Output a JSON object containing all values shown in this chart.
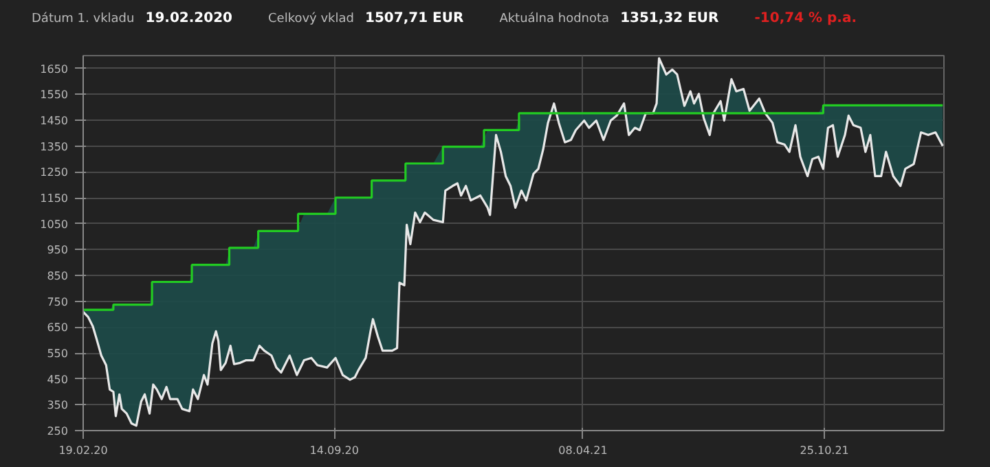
{
  "chart_data": {
    "type": "line",
    "annotations": [
      "Dátum 1. vkladu",
      "19.02.2020",
      "Celkový vklad",
      "1507,71 EUR",
      "Aktuálna hodnota",
      "1351,32 EUR",
      "-10,74 % p.a."
    ],
    "xlim": [
      "2020-02-19",
      "2022-02-01"
    ],
    "xticks": [
      {
        "value": "2020-02-19",
        "label": "19.02.20"
      },
      {
        "value": "2020-09-14",
        "label": "14.09.20"
      },
      {
        "value": "2021-04-08",
        "label": "08.04.21"
      },
      {
        "value": "2021-10-25",
        "label": "25.10.21"
      }
    ],
    "ylim": [
      250,
      1700
    ],
    "yticks": [
      250,
      350,
      450,
      550,
      650,
      750,
      850,
      950,
      1050,
      1150,
      1250,
      1350,
      1450,
      1550,
      1650
    ],
    "grid": true,
    "series": [
      {
        "color": "#e8e8e8",
        "x": [
          "2020-02-19",
          "2020-02-23",
          "2020-02-27",
          "2020-03-01",
          "2020-03-05",
          "2020-03-09",
          "2020-03-12",
          "2020-03-15",
          "2020-03-17",
          "2020-03-20",
          "2020-03-22",
          "2020-03-26",
          "2020-03-30",
          "2020-04-03",
          "2020-04-07",
          "2020-04-10",
          "2020-04-14",
          "2020-04-17",
          "2020-04-20",
          "2020-04-24",
          "2020-04-28",
          "2020-05-01",
          "2020-05-07",
          "2020-05-11",
          "2020-05-17",
          "2020-05-20",
          "2020-05-24",
          "2020-05-29",
          "2020-06-01",
          "2020-06-05",
          "2020-06-08",
          "2020-06-10",
          "2020-06-12",
          "2020-06-16",
          "2020-06-20",
          "2020-06-23",
          "2020-06-28",
          "2020-07-03",
          "2020-07-09",
          "2020-07-14",
          "2020-07-18",
          "2020-07-24",
          "2020-07-28",
          "2020-08-01",
          "2020-08-08",
          "2020-08-14",
          "2020-08-20",
          "2020-08-26",
          "2020-08-31",
          "2020-09-08",
          "2020-09-15",
          "2020-09-21",
          "2020-09-27",
          "2020-10-01",
          "2020-10-04",
          "2020-10-10",
          "2020-10-14",
          "2020-10-16",
          "2020-10-20",
          "2020-10-24",
          "2020-11-01",
          "2020-11-05",
          "2020-11-07",
          "2020-11-11",
          "2020-11-13",
          "2020-11-16",
          "2020-11-20",
          "2020-11-24",
          "2020-11-28",
          "2020-12-05",
          "2020-12-13",
          "2020-12-15",
          "2020-12-21",
          "2020-12-25",
          "2020-12-28",
          "2021-01-01",
          "2021-01-05",
          "2021-01-13",
          "2021-01-19",
          "2021-01-21",
          "2021-01-26",
          "2021-01-30",
          "2021-02-03",
          "2021-02-07",
          "2021-02-11",
          "2021-02-16",
          "2021-02-20",
          "2021-02-26",
          "2021-03-02",
          "2021-03-06",
          "2021-03-10",
          "2021-03-15",
          "2021-03-19",
          "2021-03-24",
          "2021-03-29",
          "2021-04-02",
          "2021-04-09",
          "2021-04-13",
          "2021-04-19",
          "2021-04-25",
          "2021-05-01",
          "2021-05-06",
          "2021-05-12",
          "2021-05-16",
          "2021-05-21",
          "2021-05-25",
          "2021-05-30",
          "2021-06-05",
          "2021-06-08",
          "2021-06-10",
          "2021-06-16",
          "2021-06-21",
          "2021-06-25",
          "2021-07-01",
          "2021-07-06",
          "2021-07-09",
          "2021-07-13",
          "2021-07-17",
          "2021-07-22",
          "2021-07-25",
          "2021-07-31",
          "2021-08-03",
          "2021-08-09",
          "2021-08-13",
          "2021-08-19",
          "2021-08-24",
          "2021-09-01",
          "2021-09-06",
          "2021-09-12",
          "2021-09-16",
          "2021-09-22",
          "2021-09-26",
          "2021-10-01",
          "2021-10-05",
          "2021-10-11",
          "2021-10-15",
          "2021-10-20",
          "2021-10-24",
          "2021-10-28",
          "2021-11-01",
          "2021-11-05",
          "2021-11-11",
          "2021-11-14",
          "2021-11-18",
          "2021-11-24",
          "2021-11-28",
          "2021-12-02",
          "2021-12-06",
          "2021-12-11",
          "2021-12-15",
          "2021-12-21",
          "2021-12-27",
          "2021-12-31",
          "2022-01-07",
          "2022-01-13",
          "2022-01-19",
          "2022-01-25",
          "2022-01-31"
        ],
        "values": [
          709,
          690,
          653,
          606,
          540,
          503,
          409,
          400,
          306,
          390,
          334,
          316,
          278,
          269,
          362,
          390,
          316,
          428,
          409,
          372,
          419,
          372,
          372,
          334,
          325,
          409,
          372,
          465,
          428,
          587,
          634,
          597,
          484,
          512,
          578,
          507,
          512,
          522,
          522,
          578,
          559,
          540,
          494,
          475,
          540,
          465,
          522,
          531,
          503,
          494,
          531,
          465,
          447,
          456,
          484,
          531,
          634,
          681,
          615,
          559,
          559,
          569,
          822,
          812,
          1046,
          971,
          1093,
          1056,
          1093,
          1065,
          1056,
          1178,
          1196,
          1206,
          1159,
          1196,
          1140,
          1159,
          1112,
          1084,
          1393,
          1328,
          1234,
          1196,
          1112,
          1178,
          1140,
          1243,
          1262,
          1337,
          1440,
          1515,
          1440,
          1365,
          1374,
          1412,
          1449,
          1421,
          1449,
          1374,
          1449,
          1468,
          1515,
          1393,
          1421,
          1412,
          1477,
          1477,
          1515,
          1690,
          1627,
          1646,
          1627,
          1506,
          1562,
          1515,
          1552,
          1459,
          1393,
          1477,
          1524,
          1449,
          1609,
          1562,
          1571,
          1487,
          1534,
          1477,
          1440,
          1365,
          1356,
          1328,
          1431,
          1309,
          1234,
          1300,
          1309,
          1262,
          1421,
          1431,
          1309,
          1393,
          1468,
          1431,
          1421,
          1328,
          1393,
          1234,
          1234,
          1328,
          1234,
          1196,
          1262,
          1281,
          1403,
          1393,
          1403,
          1351
        ]
      },
      {
        "type": "step",
        "color": "#22cc22",
        "x": [
          "2020-02-19",
          "2020-03-15",
          "2020-04-16",
          "2020-05-19",
          "2020-06-19",
          "2020-07-13",
          "2020-08-15",
          "2020-09-15",
          "2020-10-15",
          "2020-11-12",
          "2020-12-13",
          "2021-01-16",
          "2021-02-14",
          "2021-10-24",
          "2022-01-31"
        ],
        "values": [
          717,
          737,
          825,
          891,
          957,
          1022,
          1088,
          1151,
          1217,
          1283,
          1348,
          1412,
          1477,
          1508,
          1508
        ]
      }
    ]
  }
}
